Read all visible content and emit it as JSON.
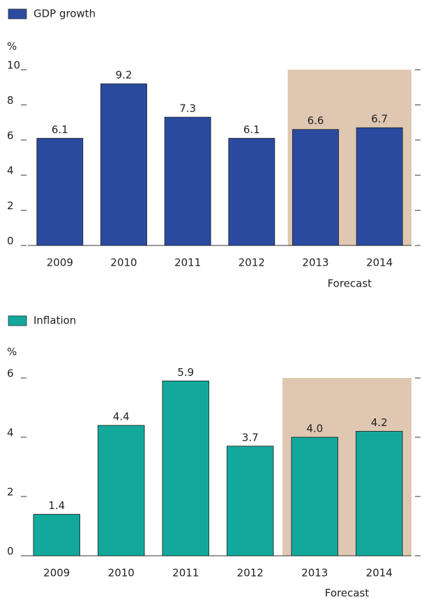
{
  "chart_data": [
    {
      "type": "bar",
      "series": [
        {
          "name": "GDP growth",
          "color": "#2a4b9f",
          "values": [
            6.1,
            9.2,
            7.3,
            6.1,
            6.6,
            6.7
          ]
        }
      ],
      "categories": [
        "2009",
        "2010",
        "2011",
        "2012",
        "2013",
        "2014"
      ],
      "y_label": "%",
      "ylim": [
        0,
        10
      ],
      "yticks": [
        0,
        2,
        4,
        6,
        8,
        10
      ],
      "shaded": {
        "label": "Forecast",
        "color": "#dfc7b1",
        "from_index": 4,
        "to_index": 5
      }
    },
    {
      "type": "bar",
      "series": [
        {
          "name": "Inflation",
          "color": "#13a89c",
          "values": [
            1.4,
            4.4,
            5.9,
            3.7,
            4.0,
            4.2
          ],
          "value_labels": [
            "1.4",
            "4.4",
            "5.9",
            "3.7",
            "4.0",
            "4.2"
          ]
        }
      ],
      "categories": [
        "2009",
        "2010",
        "2011",
        "2012",
        "2013",
        "2014"
      ],
      "y_label": "%",
      "ylim": [
        0,
        6
      ],
      "yticks": [
        0,
        2,
        4,
        6
      ],
      "shaded": {
        "label": "Forecast",
        "color": "#dfc7b1",
        "from_index": 4,
        "to_index": 5
      }
    }
  ]
}
